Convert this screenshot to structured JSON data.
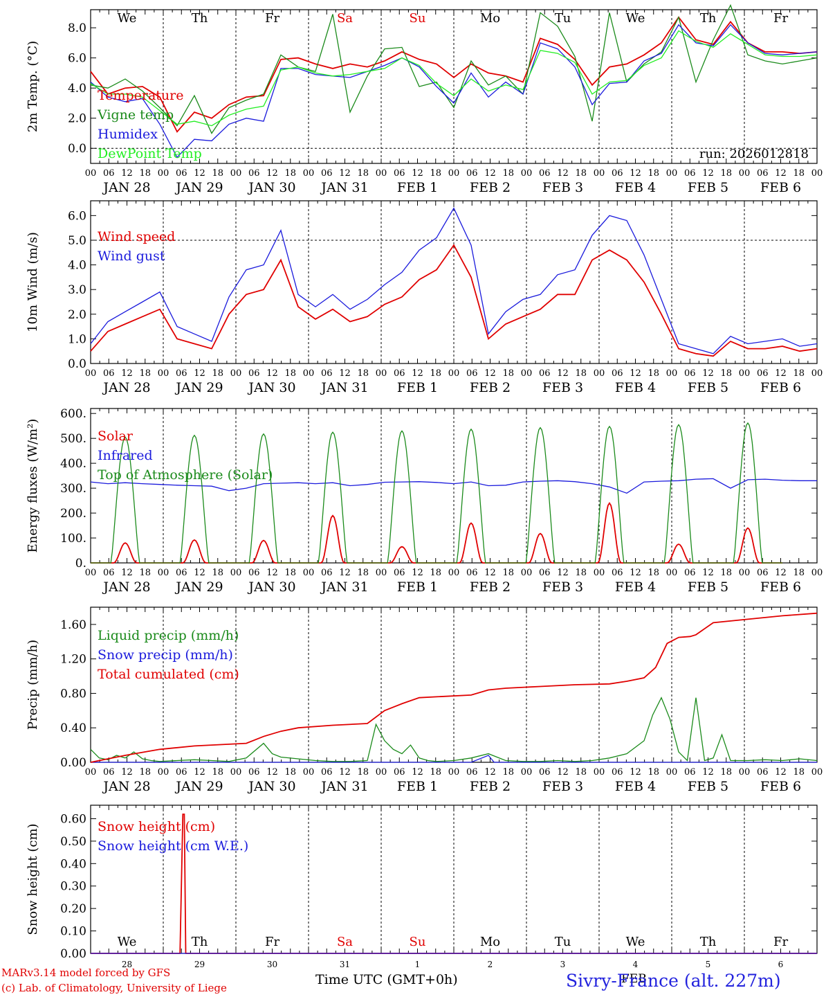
{
  "meta": {
    "run_label": "run: 2026012818",
    "model_credit": "MARv3.14 model forced by GFS",
    "lab_credit": "(c) Lab. of Climatology, University of Liege",
    "time_axis_label": "Time UTC (GMT+0h)",
    "month_label": "FEB",
    "station": "Sivry-France (alt. 227m)"
  },
  "days": {
    "weekday_labels": [
      "We",
      "Th",
      "Fr",
      "Sa",
      "Su",
      "Mo",
      "Tu",
      "We",
      "Th",
      "Fr"
    ],
    "weekend_flags": [
      false,
      false,
      false,
      true,
      true,
      false,
      false,
      false,
      false,
      false
    ],
    "date_labels": [
      "JAN 28",
      "JAN 29",
      "JAN 30",
      "JAN 31",
      "FEB  1",
      "FEB  2",
      "FEB  3",
      "FEB  4",
      "FEB  5",
      "FEB  6"
    ],
    "short_dates": [
      "28",
      "29",
      "30",
      "31",
      "1",
      "2",
      "3",
      "4",
      "5",
      "6"
    ],
    "hour_ticks": [
      "00",
      "06",
      "12",
      "18"
    ],
    "final_tick": "00"
  },
  "colors": {
    "red": "#e00000",
    "green": "#1a8a1a",
    "blue": "#1a1adc",
    "lightgreen": "#22ee22",
    "axis": "#000000"
  },
  "chart_data": [
    {
      "type": "line",
      "id": "temp",
      "ylabel": "2m Temp. (°C)",
      "ylim": [
        -1.0,
        9.2
      ],
      "yticks": [
        0.0,
        2.0,
        4.0,
        6.0,
        8.0
      ],
      "ytick_labels": [
        "0.0",
        "2.0",
        "4.0",
        "6.0",
        "8.0"
      ],
      "dashed_hlines": [
        0.0
      ],
      "x_unit": "hours since Jan 28 00 UTC",
      "xlim": [
        0,
        252
      ],
      "series": [
        {
          "name": "Temperature",
          "color": "red",
          "x": [
            0,
            6,
            12,
            18,
            24,
            30,
            36,
            42,
            48,
            54,
            60,
            66,
            72,
            78,
            84,
            90,
            96,
            102,
            108,
            114,
            120,
            126,
            132,
            138,
            144,
            150,
            156,
            162,
            168,
            174,
            180,
            186,
            192,
            198,
            204,
            210,
            216,
            222,
            228,
            234,
            240,
            246,
            252
          ],
          "values": [
            5.1,
            3.6,
            4.0,
            4.1,
            3.4,
            1.1,
            2.4,
            2.0,
            2.9,
            3.4,
            3.5,
            5.9,
            6.0,
            5.6,
            5.3,
            5.6,
            5.4,
            5.8,
            6.4,
            5.9,
            5.6,
            4.7,
            5.6,
            5.0,
            4.8,
            4.4,
            7.3,
            6.9,
            5.9,
            4.2,
            5.4,
            5.6,
            6.2,
            7.0,
            8.7,
            7.2,
            6.9,
            8.4,
            7.0,
            6.4,
            6.4,
            6.3,
            6.4
          ]
        },
        {
          "name": "Vigne temp",
          "color": "green",
          "x": [
            0,
            6,
            12,
            18,
            24,
            30,
            36,
            42,
            48,
            54,
            60,
            66,
            72,
            78,
            84,
            90,
            96,
            102,
            108,
            114,
            120,
            126,
            132,
            138,
            144,
            150,
            156,
            162,
            168,
            174,
            180,
            186,
            192,
            198,
            204,
            210,
            216,
            222,
            228,
            234,
            240,
            246,
            252
          ],
          "values": [
            4.2,
            4.0,
            4.6,
            3.8,
            2.7,
            1.5,
            3.5,
            1.0,
            2.7,
            3.2,
            3.6,
            6.2,
            5.4,
            5.1,
            8.9,
            2.4,
            4.8,
            6.6,
            6.7,
            4.1,
            4.4,
            2.7,
            5.8,
            4.2,
            4.8,
            3.6,
            9.0,
            8.1,
            6.1,
            1.8,
            9.0,
            4.4,
            5.6,
            6.4,
            8.7,
            4.4,
            7.2,
            9.5,
            6.2,
            5.8,
            5.6,
            5.8,
            6.0
          ]
        },
        {
          "name": "Humidex",
          "color": "blue",
          "x": [
            0,
            6,
            12,
            18,
            24,
            30,
            36,
            42,
            48,
            54,
            60,
            66,
            72,
            78,
            84,
            90,
            96,
            102,
            108,
            114,
            120,
            126,
            132,
            138,
            144,
            150,
            156,
            162,
            168,
            174,
            180,
            186,
            192,
            198,
            204,
            210,
            216,
            222,
            228,
            234,
            240,
            246,
            252
          ],
          "values": [
            4.4,
            3.4,
            3.1,
            3.3,
            1.6,
            -0.6,
            0.6,
            0.5,
            1.6,
            2.0,
            1.8,
            5.3,
            5.3,
            4.9,
            4.8,
            4.7,
            5.1,
            5.5,
            6.0,
            5.4,
            4.1,
            3.0,
            5.0,
            3.4,
            4.4,
            3.6,
            7.0,
            6.6,
            5.4,
            2.9,
            4.3,
            4.4,
            5.8,
            6.3,
            8.2,
            7.0,
            6.8,
            8.2,
            7.0,
            6.3,
            6.2,
            6.3,
            6.4
          ]
        },
        {
          "name": "DewPoint Temp",
          "color": "lightgreen",
          "x": [
            0,
            6,
            12,
            18,
            24,
            30,
            36,
            42,
            48,
            54,
            60,
            66,
            72,
            78,
            84,
            90,
            96,
            102,
            108,
            114,
            120,
            126,
            132,
            138,
            144,
            150,
            156,
            162,
            168,
            174,
            180,
            186,
            192,
            198,
            204,
            210,
            216,
            222,
            228,
            234,
            240,
            246,
            252
          ],
          "values": [
            4.3,
            3.6,
            3.6,
            3.4,
            2.5,
            1.6,
            1.8,
            1.5,
            2.2,
            2.6,
            2.8,
            5.2,
            5.4,
            5.0,
            4.8,
            4.9,
            5.1,
            5.3,
            6.0,
            5.5,
            4.3,
            3.5,
            4.6,
            3.8,
            4.2,
            3.9,
            6.5,
            6.3,
            5.7,
            3.6,
            4.4,
            4.5,
            5.5,
            6.0,
            7.8,
            7.1,
            6.7,
            7.6,
            6.9,
            6.2,
            6.1,
            6.1,
            6.2
          ]
        }
      ]
    },
    {
      "type": "line",
      "id": "wind",
      "ylabel": "10m Wind (m/s)",
      "ylim": [
        0.0,
        6.6
      ],
      "yticks": [
        0.0,
        1.0,
        2.0,
        3.0,
        4.0,
        5.0,
        6.0
      ],
      "ytick_labels": [
        "0.0",
        "1.0",
        "2.0",
        "3.0",
        "4.0",
        "5.0",
        "6.0"
      ],
      "dashed_hlines": [
        5.0
      ],
      "xlim": [
        0,
        252
      ],
      "series": [
        {
          "name": "Wind speed",
          "color": "red",
          "x": [
            0,
            6,
            12,
            18,
            24,
            30,
            36,
            42,
            48,
            54,
            60,
            66,
            72,
            78,
            84,
            90,
            96,
            102,
            108,
            114,
            120,
            126,
            132,
            138,
            144,
            150,
            156,
            162,
            168,
            174,
            180,
            186,
            192,
            198,
            204,
            210,
            216,
            222,
            228,
            234,
            240,
            246,
            252
          ],
          "values": [
            0.5,
            1.3,
            1.6,
            1.9,
            2.2,
            1.0,
            0.8,
            0.6,
            2.0,
            2.8,
            3.0,
            4.2,
            2.3,
            1.8,
            2.2,
            1.7,
            1.9,
            2.4,
            2.7,
            3.4,
            3.8,
            4.8,
            3.5,
            1.0,
            1.6,
            1.9,
            2.2,
            2.8,
            2.8,
            4.2,
            4.6,
            4.2,
            3.3,
            2.0,
            0.6,
            0.4,
            0.3,
            0.9,
            0.6,
            0.6,
            0.7,
            0.5,
            0.6
          ]
        },
        {
          "name": "Wind gust",
          "color": "blue",
          "x": [
            0,
            6,
            12,
            18,
            24,
            30,
            36,
            42,
            48,
            54,
            60,
            66,
            72,
            78,
            84,
            90,
            96,
            102,
            108,
            114,
            120,
            126,
            132,
            138,
            144,
            150,
            156,
            162,
            168,
            174,
            180,
            186,
            192,
            198,
            204,
            210,
            216,
            222,
            228,
            234,
            240,
            246,
            252
          ],
          "values": [
            0.8,
            1.7,
            2.1,
            2.5,
            2.9,
            1.5,
            1.2,
            0.9,
            2.7,
            3.8,
            4.0,
            5.4,
            2.8,
            2.3,
            2.8,
            2.2,
            2.6,
            3.2,
            3.7,
            4.6,
            5.1,
            6.3,
            4.8,
            1.2,
            2.1,
            2.6,
            2.8,
            3.6,
            3.8,
            5.2,
            6.0,
            5.8,
            4.4,
            2.6,
            0.8,
            0.6,
            0.4,
            1.1,
            0.8,
            0.9,
            1.0,
            0.7,
            0.8
          ]
        }
      ]
    },
    {
      "type": "line",
      "id": "energy",
      "ylabel": "Energy fluxes (W/m²)",
      "ylim": [
        0,
        620
      ],
      "yticks": [
        0,
        100,
        200,
        300,
        400,
        500,
        600
      ],
      "ytick_labels": [
        "0.",
        "100.",
        "200.",
        "300.",
        "400.",
        "500.",
        "600."
      ],
      "dashed_hlines": [],
      "xlim": [
        0,
        252
      ],
      "daily_peaks": {
        "solar": [
          80,
          92,
          90,
          190,
          65,
          160,
          118,
          240,
          75,
          140
        ],
        "toa": [
          505,
          512,
          518,
          525,
          530,
          537,
          543,
          548,
          555,
          562
        ]
      },
      "series": [
        {
          "name": "Solar",
          "color": "red",
          "values": "daily_peaks.solar"
        },
        {
          "name": "Infrared",
          "color": "blue",
          "x": [
            0,
            6,
            12,
            18,
            24,
            30,
            36,
            42,
            48,
            54,
            60,
            66,
            72,
            78,
            84,
            90,
            96,
            102,
            108,
            114,
            120,
            126,
            132,
            138,
            144,
            150,
            156,
            162,
            168,
            174,
            180,
            186,
            192,
            198,
            204,
            210,
            216,
            222,
            228,
            234,
            240,
            246,
            252
          ],
          "values": [
            325,
            318,
            322,
            318,
            315,
            312,
            310,
            308,
            290,
            300,
            318,
            320,
            322,
            318,
            322,
            310,
            315,
            324,
            325,
            326,
            323,
            318,
            325,
            310,
            312,
            325,
            328,
            330,
            326,
            318,
            305,
            280,
            325,
            328,
            330,
            336,
            338,
            300,
            334,
            336,
            332,
            330,
            330
          ]
        },
        {
          "name": "Top of Atmosphere (Solar)",
          "color": "green",
          "values": "daily_peaks.toa"
        }
      ]
    },
    {
      "type": "line",
      "id": "precip",
      "ylabel": "Precip (mm/h)",
      "ylim": [
        0.0,
        1.8
      ],
      "yticks": [
        0.0,
        0.4,
        0.8,
        1.2,
        1.6
      ],
      "ytick_labels": [
        "0.00",
        "0.40",
        "0.80",
        "1.20",
        "1.60"
      ],
      "dashed_hlines": [],
      "xlim": [
        0,
        252
      ],
      "series": [
        {
          "name": "Liquid precip (mm/h)",
          "color": "green",
          "x": [
            0,
            3,
            6,
            9,
            12,
            15,
            18,
            21,
            24,
            30,
            36,
            42,
            48,
            54,
            60,
            63,
            66,
            72,
            78,
            84,
            90,
            96,
            99,
            102,
            105,
            108,
            111,
            114,
            117,
            120,
            126,
            132,
            138,
            144,
            150,
            156,
            162,
            168,
            174,
            180,
            186,
            192,
            195,
            198,
            201,
            204,
            207,
            210,
            213,
            216,
            219,
            222,
            228,
            234,
            240,
            246,
            252
          ],
          "values": [
            0.15,
            0.05,
            0.03,
            0.08,
            0.05,
            0.12,
            0.04,
            0.02,
            0.01,
            0.02,
            0.03,
            0.02,
            0.01,
            0.05,
            0.22,
            0.1,
            0.06,
            0.04,
            0.02,
            0.01,
            0.01,
            0.02,
            0.44,
            0.25,
            0.15,
            0.1,
            0.2,
            0.05,
            0.02,
            0.01,
            0.02,
            0.05,
            0.1,
            0.02,
            0.01,
            0.01,
            0.02,
            0.01,
            0.02,
            0.05,
            0.1,
            0.25,
            0.55,
            0.75,
            0.5,
            0.12,
            0.02,
            0.75,
            0.02,
            0.05,
            0.32,
            0.02,
            0.02,
            0.03,
            0.02,
            0.04,
            0.02
          ]
        },
        {
          "name": "Snow precip (mm/h)",
          "color": "blue",
          "x": [
            0,
            120,
            132,
            138,
            140,
            252
          ],
          "values": [
            0.0,
            0.0,
            0.0,
            0.08,
            0.0,
            0.0
          ]
        },
        {
          "name": "Total cumulated (cm)",
          "color": "red",
          "x": [
            0,
            12,
            24,
            36,
            48,
            54,
            60,
            66,
            72,
            84,
            96,
            102,
            108,
            114,
            120,
            132,
            138,
            144,
            156,
            168,
            180,
            186,
            192,
            196,
            200,
            204,
            208,
            210,
            216,
            240,
            252
          ],
          "values": [
            0.0,
            0.08,
            0.15,
            0.19,
            0.21,
            0.22,
            0.3,
            0.36,
            0.4,
            0.43,
            0.45,
            0.6,
            0.68,
            0.75,
            0.76,
            0.78,
            0.84,
            0.86,
            0.88,
            0.9,
            0.91,
            0.94,
            0.98,
            1.1,
            1.38,
            1.45,
            1.46,
            1.48,
            1.62,
            1.7,
            1.73
          ]
        }
      ]
    },
    {
      "type": "line",
      "id": "snow",
      "ylabel": "Snow height (cm)",
      "ylim": [
        0.0,
        0.66
      ],
      "yticks": [
        0.0,
        0.1,
        0.2,
        0.3,
        0.4,
        0.5,
        0.6
      ],
      "ytick_labels": [
        "0.00",
        "0.10",
        "0.20",
        "0.30",
        "0.40",
        "0.50",
        "0.60"
      ],
      "dashed_hlines": [],
      "xlim": [
        0,
        252
      ],
      "series": [
        {
          "name": "Snow height (cm)",
          "color": "red",
          "x": [
            0,
            31,
            32,
            32.5,
            33,
            252
          ],
          "values": [
            0.0,
            0.0,
            0.62,
            0.62,
            0.0,
            0.0
          ]
        },
        {
          "name": "Snow height (cm W.E.)",
          "color": "blue",
          "x": [
            0,
            252
          ],
          "values": [
            0.0,
            0.0
          ]
        }
      ]
    }
  ]
}
